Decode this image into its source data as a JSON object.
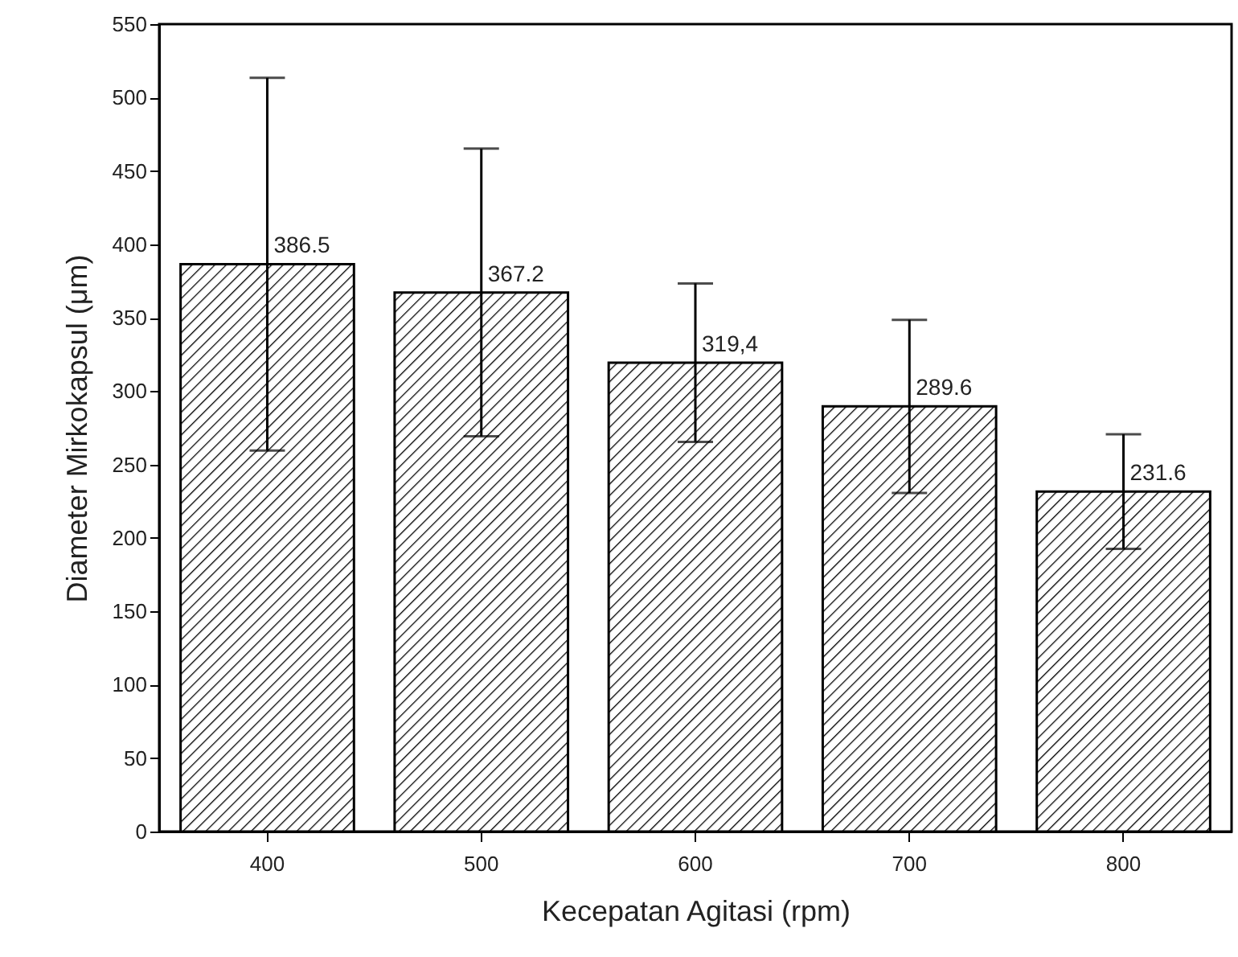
{
  "chart_data": {
    "type": "bar",
    "xlabel": "Kecepatan Agitasi (rpm)",
    "ylabel": "Diameter Mirkokapsul (μm)",
    "categories": [
      "400",
      "500",
      "600",
      "700",
      "800"
    ],
    "values": [
      386.5,
      367.2,
      319.4,
      289.6,
      231.6
    ],
    "errors": [
      127,
      98,
      54,
      59,
      39
    ],
    "value_labels": [
      "386.5",
      "367.2",
      "319,4",
      "289.6",
      "231.6"
    ],
    "color": "#000000",
    "ylim": [
      0,
      550
    ],
    "yticks": [
      0,
      50,
      100,
      150,
      200,
      250,
      300,
      350,
      400,
      450,
      500,
      550
    ],
    "grid": false
  }
}
